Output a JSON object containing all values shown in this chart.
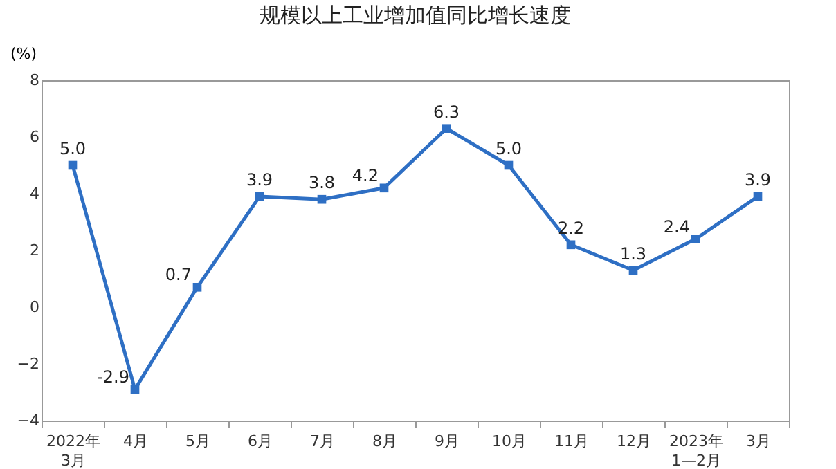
{
  "chart_data": {
    "type": "line",
    "title": "规模以上工业增加值同比增长速度",
    "ylabel": "(%)",
    "categories": [
      "2022年\n3月",
      "4月",
      "5月",
      "6月",
      "7月",
      "8月",
      "9月",
      "10月",
      "11月",
      "12月",
      "2023年\n1—2月",
      "3月"
    ],
    "series": [
      {
        "color": "#2e6fc4",
        "values": [
          5.0,
          -2.9,
          0.7,
          3.9,
          3.8,
          4.2,
          6.3,
          5.0,
          2.2,
          1.3,
          2.4,
          3.9
        ]
      }
    ],
    "value_labels": [
      "5.0",
      "-2.9",
      "0.7",
      "3.9",
      "3.8",
      "4.2",
      "6.3",
      "5.0",
      "2.2",
      "1.3",
      "2.4",
      "3.9"
    ],
    "ylim": [
      -4,
      8
    ],
    "yticks": [
      -4,
      -2,
      0,
      2,
      4,
      6,
      8
    ],
    "grid": false,
    "legend": false,
    "marker": "square",
    "line_style": "solid"
  }
}
